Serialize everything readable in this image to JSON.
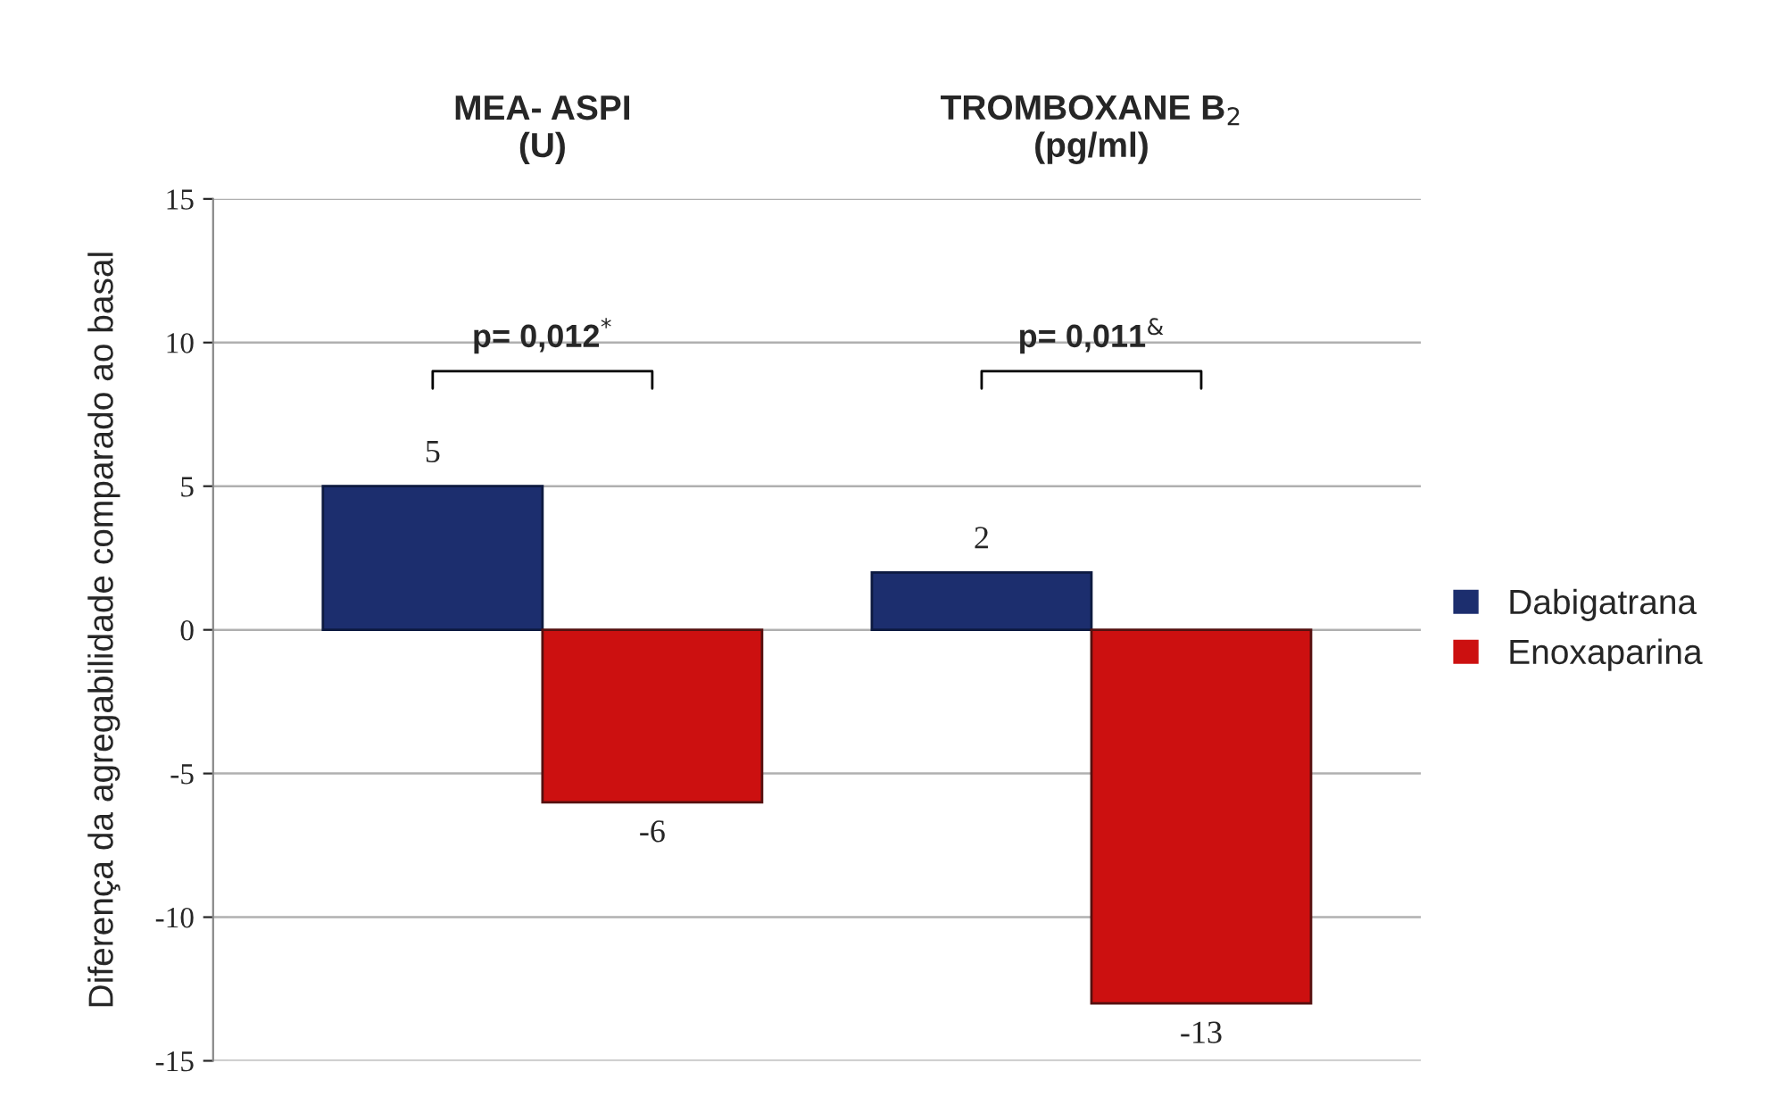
{
  "chart_data": {
    "type": "bar",
    "categories": [
      "MEA- ASPI\n(U)",
      "TROMBOXANE B$_{2}$\n(pg/ml)"
    ],
    "ylabel": "Diferença da agregabilidade comparado ao basal",
    "series": [
      {
        "name": "Dabigatrana",
        "color": "#1c2e6e",
        "values": [
          5,
          2
        ]
      },
      {
        "name": "Enoxaparina",
        "color": "#cc1010",
        "values": [
          -6,
          -13
        ]
      }
    ],
    "ylim": [
      -15,
      15
    ],
    "yticks": [
      -15,
      -10,
      -5,
      0,
      5,
      10,
      15
    ],
    "grid": "y",
    "legend": "right",
    "data_labels": true,
    "annotations": [
      "p= 0,012$^{*}$",
      "p= 0,011$^{&}$"
    ]
  }
}
